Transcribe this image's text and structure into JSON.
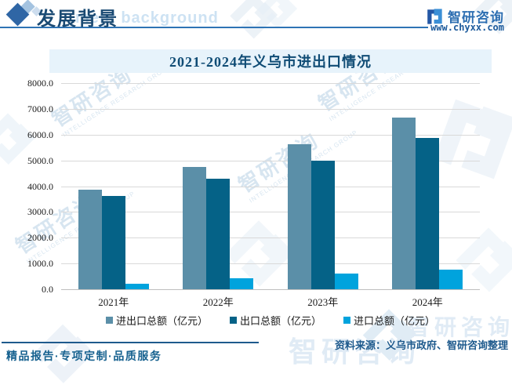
{
  "header": {
    "title": "发展背景",
    "watermark_en": "ment background",
    "brand": {
      "name": "智研咨询",
      "site": "www.chyxx.com"
    }
  },
  "chart_data": {
    "type": "bar",
    "title": "2021-2024年义乌市进出口情况",
    "categories": [
      "2021年",
      "2022年",
      "2023年",
      "2024年"
    ],
    "series": [
      {
        "key": "total",
        "name": "进出口总额（亿元）",
        "color": "#5b8fa8",
        "values": [
          3903,
          4788,
          5660,
          6689
        ]
      },
      {
        "key": "export",
        "name": "出口总额（亿元）",
        "color": "#056287",
        "values": [
          3659,
          4316,
          5008,
          5890
        ]
      },
      {
        "key": "import",
        "name": "进口总额（亿元）",
        "color": "#00a3dd",
        "values": [
          240,
          470,
          650,
          800
        ]
      }
    ],
    "ylim": [
      0,
      8000
    ],
    "ytick_step": 1000,
    "ytick_labels": [
      "0.0",
      "1000.0",
      "2000.0",
      "3000.0",
      "4000.0",
      "5000.0",
      "6000.0",
      "7000.0",
      "8000.0"
    ],
    "grid": true,
    "legend_position": "bottom",
    "title_bg": "#e7f3fb",
    "gridline_color": "#d9d9d9"
  },
  "source_note": "资料来源：义乌市政府、智研咨询整理",
  "footer": "精品报告·专项定制·品质服务",
  "watermarks": {
    "cn": "智研咨询",
    "en": "INTELLIGENCE RESEARCH GROUP"
  }
}
